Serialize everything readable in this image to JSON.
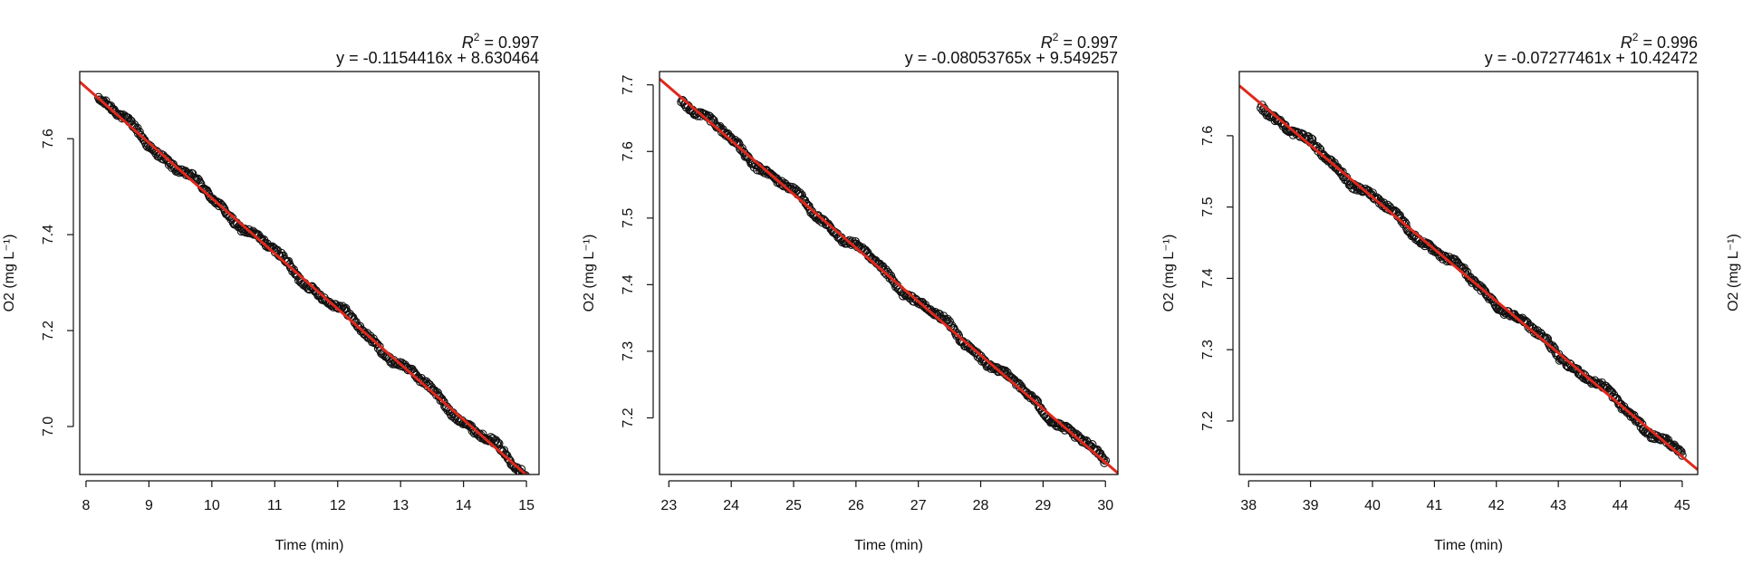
{
  "chart_data": [
    {
      "type": "scatter",
      "xlabel": "Time (min)",
      "ylabel": "O2 (mg L⁻¹)",
      "r2_label": "R",
      "r2_sup": "2",
      "r2_value": " = 0.997",
      "equation": "y = -0.1154416x + 8.630464",
      "slope": -0.1154416,
      "intercept": 8.630464,
      "xlim": [
        7.9,
        15.2
      ],
      "ylim": [
        6.9,
        7.74
      ],
      "xticks": [
        8,
        9,
        10,
        11,
        12,
        13,
        14,
        15
      ],
      "yticks": [
        7.0,
        7.2,
        7.4,
        7.6
      ],
      "x_data_range": [
        8.2,
        15.0
      ],
      "fit_color": "#e0281c",
      "point_color": "#111111"
    },
    {
      "type": "scatter",
      "xlabel": "Time (min)",
      "ylabel": "O2 (mg L⁻¹)",
      "r2_label": "R",
      "r2_sup": "2",
      "r2_value": " = 0.997",
      "equation": "y = -0.08053765x + 9.549257",
      "slope": -0.08053765,
      "intercept": 9.549257,
      "xlim": [
        22.85,
        30.2
      ],
      "ylim": [
        7.115,
        7.72
      ],
      "xticks": [
        23,
        24,
        25,
        26,
        27,
        28,
        29,
        30
      ],
      "yticks": [
        7.2,
        7.3,
        7.4,
        7.5,
        7.6,
        7.7
      ],
      "x_data_range": [
        23.2,
        30.0
      ],
      "fit_color": "#e0281c",
      "point_color": "#111111"
    },
    {
      "type": "scatter",
      "xlabel": "Time (min)",
      "ylabel": "O2 (mg L⁻¹)",
      "r2_label": "R",
      "r2_sup": "2",
      "r2_value": " = 0.996",
      "equation": "y = -0.07277461x + 10.42472",
      "slope": -0.07277461,
      "intercept": 10.42472,
      "xlim": [
        37.85,
        45.25
      ],
      "ylim": [
        7.125,
        7.69
      ],
      "xticks": [
        38,
        39,
        40,
        41,
        42,
        43,
        44,
        45
      ],
      "yticks": [
        7.2,
        7.3,
        7.4,
        7.5,
        7.6
      ],
      "x_data_range": [
        38.2,
        45.0
      ],
      "fit_color": "#e0281c",
      "point_color": "#111111"
    }
  ],
  "partial_panel": {
    "ylabel": "O2 (mg L⁻¹)"
  }
}
